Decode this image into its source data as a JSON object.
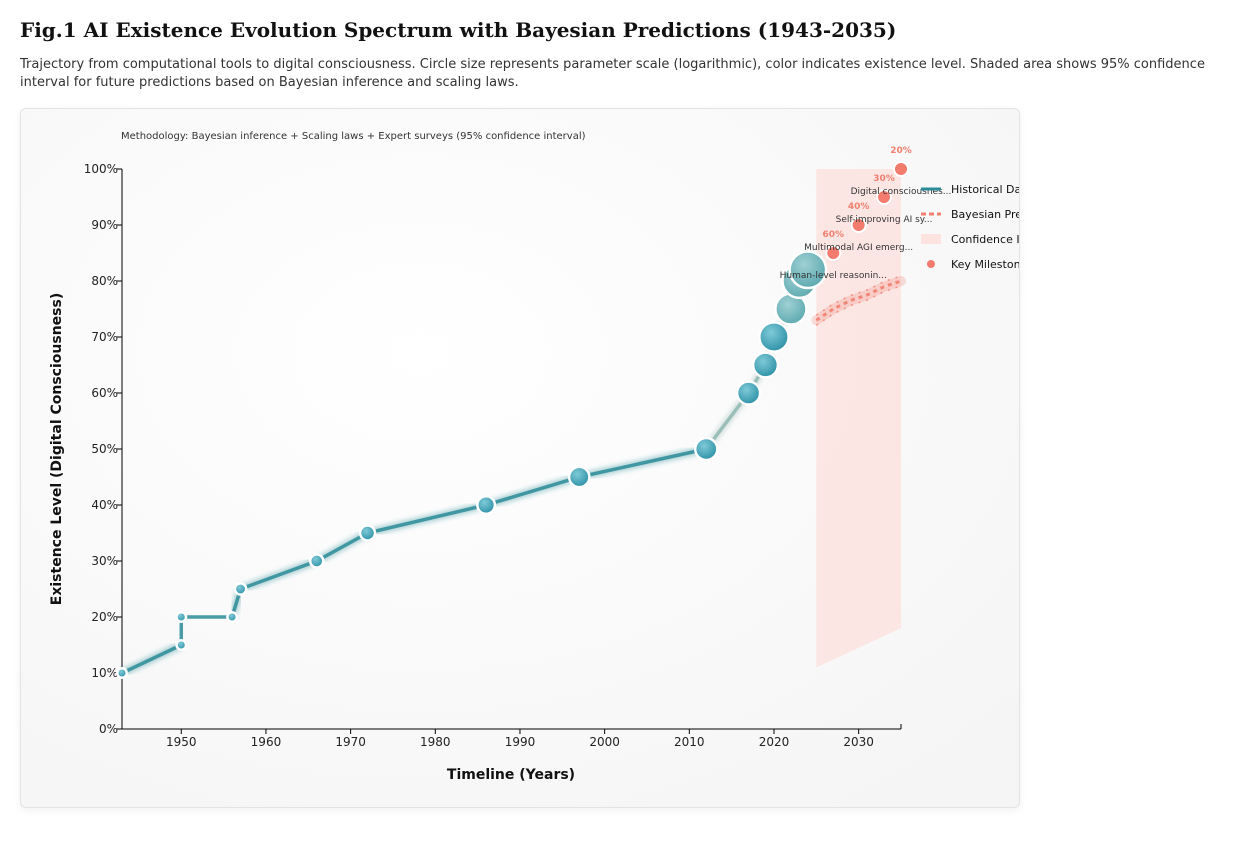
{
  "page": {
    "title": "Fig.1 AI Existence Evolution Spectrum with Bayesian Predictions (1943-2035)",
    "subtitle": "Trajectory from computational tools to digital consciousness. Circle size represents parameter scale (logarithmic), color indicates existence level. Shaded area shows 95% confidence interval for future predictions based on Bayesian inference and scaling laws."
  },
  "chart_data": {
    "type": "line",
    "methodology": "Methodology: Bayesian inference + Scaling laws + Expert surveys (95% confidence interval)",
    "xlabel": "Timeline (Years)",
    "ylabel": "Existence Level (Digital Consciousness)",
    "xlim": [
      1943,
      2035
    ],
    "ylim": [
      0,
      100
    ],
    "xticks": [
      1950,
      1960,
      1970,
      1980,
      1990,
      2000,
      2010,
      2020,
      2030
    ],
    "xtick_labels": [
      "1950",
      "1960",
      "1970",
      "1980",
      "1990",
      "2000",
      "2010",
      "2020",
      "2030"
    ],
    "yticks": [
      0,
      10,
      20,
      30,
      40,
      50,
      60,
      70,
      80,
      90,
      100
    ],
    "ytick_labels": [
      "0%",
      "10%",
      "20%",
      "30%",
      "40%",
      "50%",
      "60%",
      "70%",
      "80%",
      "90%",
      "100%"
    ],
    "grid": false,
    "legend_placement": "top-right",
    "colors": {
      "historical_line": "#2a8c98",
      "historical_point": "#3a9fb2",
      "late_point": "#6ab4bc",
      "prediction": "#f08070",
      "confidence_band": "#fde3e0",
      "milestone": "#f47c6e"
    },
    "series": [
      {
        "name": "Historical Data",
        "x": [
          1943,
          1950,
          1950,
          1956,
          1957,
          1966,
          1972,
          1986,
          1997,
          2012,
          2017,
          2019,
          2020,
          2022,
          2023,
          2024
        ],
        "y": [
          10,
          15,
          20,
          20,
          25,
          30,
          35,
          40,
          45,
          50,
          60,
          65,
          70,
          75,
          80,
          82
        ],
        "size_scale": [
          1,
          1,
          1,
          1,
          1.2,
          1.4,
          1.6,
          1.9,
          2.2,
          2.4,
          2.5,
          2.7,
          3.2,
          3.4,
          3.7,
          4.0
        ]
      },
      {
        "name": "Bayesian Prediction",
        "x": [
          2025,
          2027,
          2029,
          2031,
          2033,
          2035
        ],
        "y": [
          73,
          75,
          76.5,
          77.5,
          79,
          80
        ]
      }
    ],
    "confidence_interval": {
      "name": "Confidence Interval",
      "x": [
        2025,
        2035
      ],
      "lower": [
        11,
        18
      ],
      "upper": [
        100,
        100
      ]
    },
    "milestones": {
      "name": "Key Milestone",
      "items": [
        {
          "x": 2027,
          "y": 85,
          "label": "Human-level reasonin...",
          "probability": "60%"
        },
        {
          "x": 2030,
          "y": 90,
          "label": "Multimodal AGI emerg...",
          "probability": "40%"
        },
        {
          "x": 2033,
          "y": 95,
          "label": "Self-improving AI sy...",
          "probability": "30%"
        },
        {
          "x": 2035,
          "y": 100,
          "label": "Digital consciousnes...",
          "probability": "20%"
        }
      ]
    },
    "legend": [
      "Historical Data",
      "Bayesian Prediction",
      "Confidence Interval",
      "Key Milestone"
    ]
  }
}
